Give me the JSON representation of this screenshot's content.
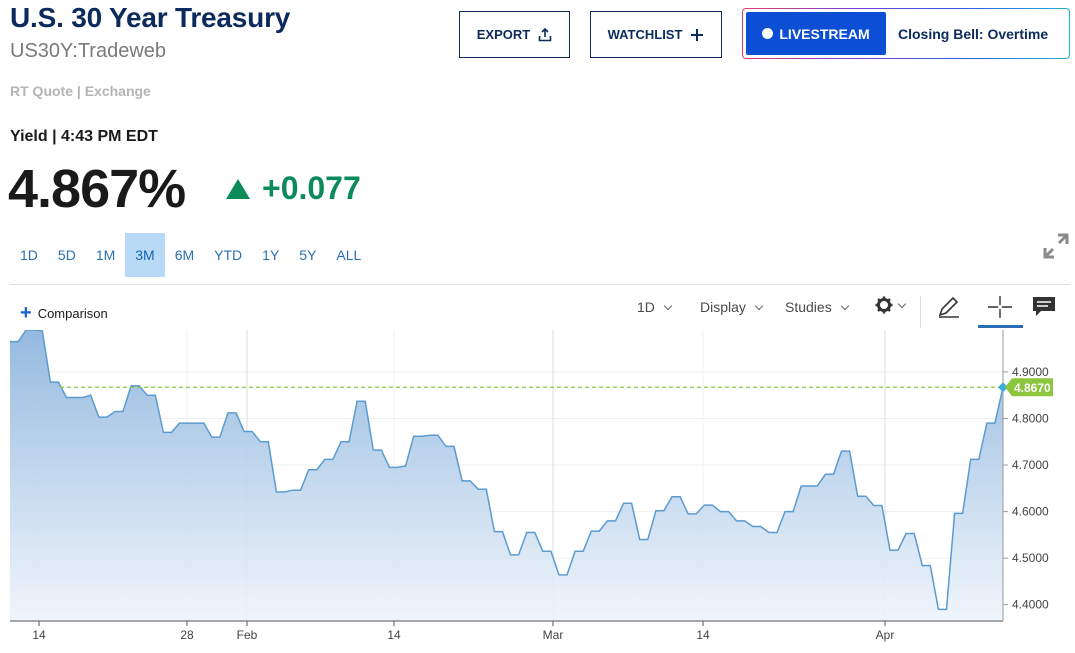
{
  "header": {
    "title": "U.S. 30 Year Treasury",
    "symbol": "US30Y:Tradeweb",
    "quote_source": "RT Quote | Exchange",
    "export_label": "EXPORT",
    "watchlist_label": "WATCHLIST",
    "livestream_label": "LIVESTREAM",
    "livestream_show": "Closing Bell: Overtime"
  },
  "quote": {
    "time_label": "Yield | 4:43 PM EDT",
    "price": "4.867%",
    "change": "+0.077",
    "change_color": "#0b8a5a"
  },
  "ranges": [
    "1D",
    "5D",
    "1M",
    "3M",
    "6M",
    "YTD",
    "1Y",
    "5Y",
    "ALL"
  ],
  "active_range": "3M",
  "toolbar": {
    "comparison": "Comparison",
    "interval": "1D",
    "display": "Display",
    "studies": "Studies"
  },
  "icons": [
    "upload-icon",
    "plus-icon",
    "expand-icon",
    "gear-icon",
    "pencil-icon",
    "crosshair-icon",
    "comment-icon"
  ],
  "chart_data": {
    "type": "area",
    "x_tick_labels": [
      "14",
      "28",
      "Feb",
      "14",
      "Mar",
      "14",
      "Apr"
    ],
    "y_tick_labels": [
      "4.9000",
      "4.8000",
      "4.7000",
      "4.6000",
      "4.5000",
      "4.4000"
    ],
    "ylim": [
      4.365,
      4.99
    ],
    "last_value_label": "4.8670",
    "reference_line": 4.867,
    "line_color": "#5b9bd0",
    "marker_color": "#8cc63f",
    "series": [
      {
        "values": [
          4.965,
          4.965,
          4.99,
          4.99,
          4.988,
          4.878,
          4.878,
          4.845,
          4.845,
          4.845,
          4.85,
          4.803,
          4.803,
          4.815,
          4.815,
          4.87,
          4.87,
          4.85,
          4.85,
          4.77,
          4.77,
          4.79,
          4.79,
          4.79,
          4.79,
          4.76,
          4.76,
          4.812,
          4.812,
          4.772,
          4.772,
          4.75,
          4.75,
          4.642,
          4.642,
          4.646,
          4.646,
          4.69,
          4.69,
          4.712,
          4.712,
          4.75,
          4.75,
          4.837,
          4.837,
          4.732,
          4.732,
          4.695,
          4.695,
          4.698,
          4.762,
          4.762,
          4.764,
          4.764,
          4.74,
          4.74,
          4.666,
          4.666,
          4.648,
          4.648,
          4.557,
          4.557,
          4.507,
          4.507,
          4.555,
          4.555,
          4.515,
          4.515,
          4.464,
          4.464,
          4.515,
          4.515,
          4.558,
          4.558,
          4.58,
          4.58,
          4.618,
          4.618,
          4.54,
          4.54,
          4.602,
          4.602,
          4.632,
          4.632,
          4.595,
          4.595,
          4.614,
          4.614,
          4.6,
          4.6,
          4.58,
          4.58,
          4.568,
          4.568,
          4.555,
          4.555,
          4.6,
          4.6,
          4.655,
          4.655,
          4.655,
          4.68,
          4.68,
          4.73,
          4.73,
          4.633,
          4.633,
          4.613,
          4.613,
          4.517,
          4.517,
          4.553,
          4.553,
          4.484,
          4.484,
          4.39,
          4.39,
          4.596,
          4.596,
          4.712,
          4.712,
          4.79,
          4.79,
          4.867
        ]
      }
    ]
  }
}
